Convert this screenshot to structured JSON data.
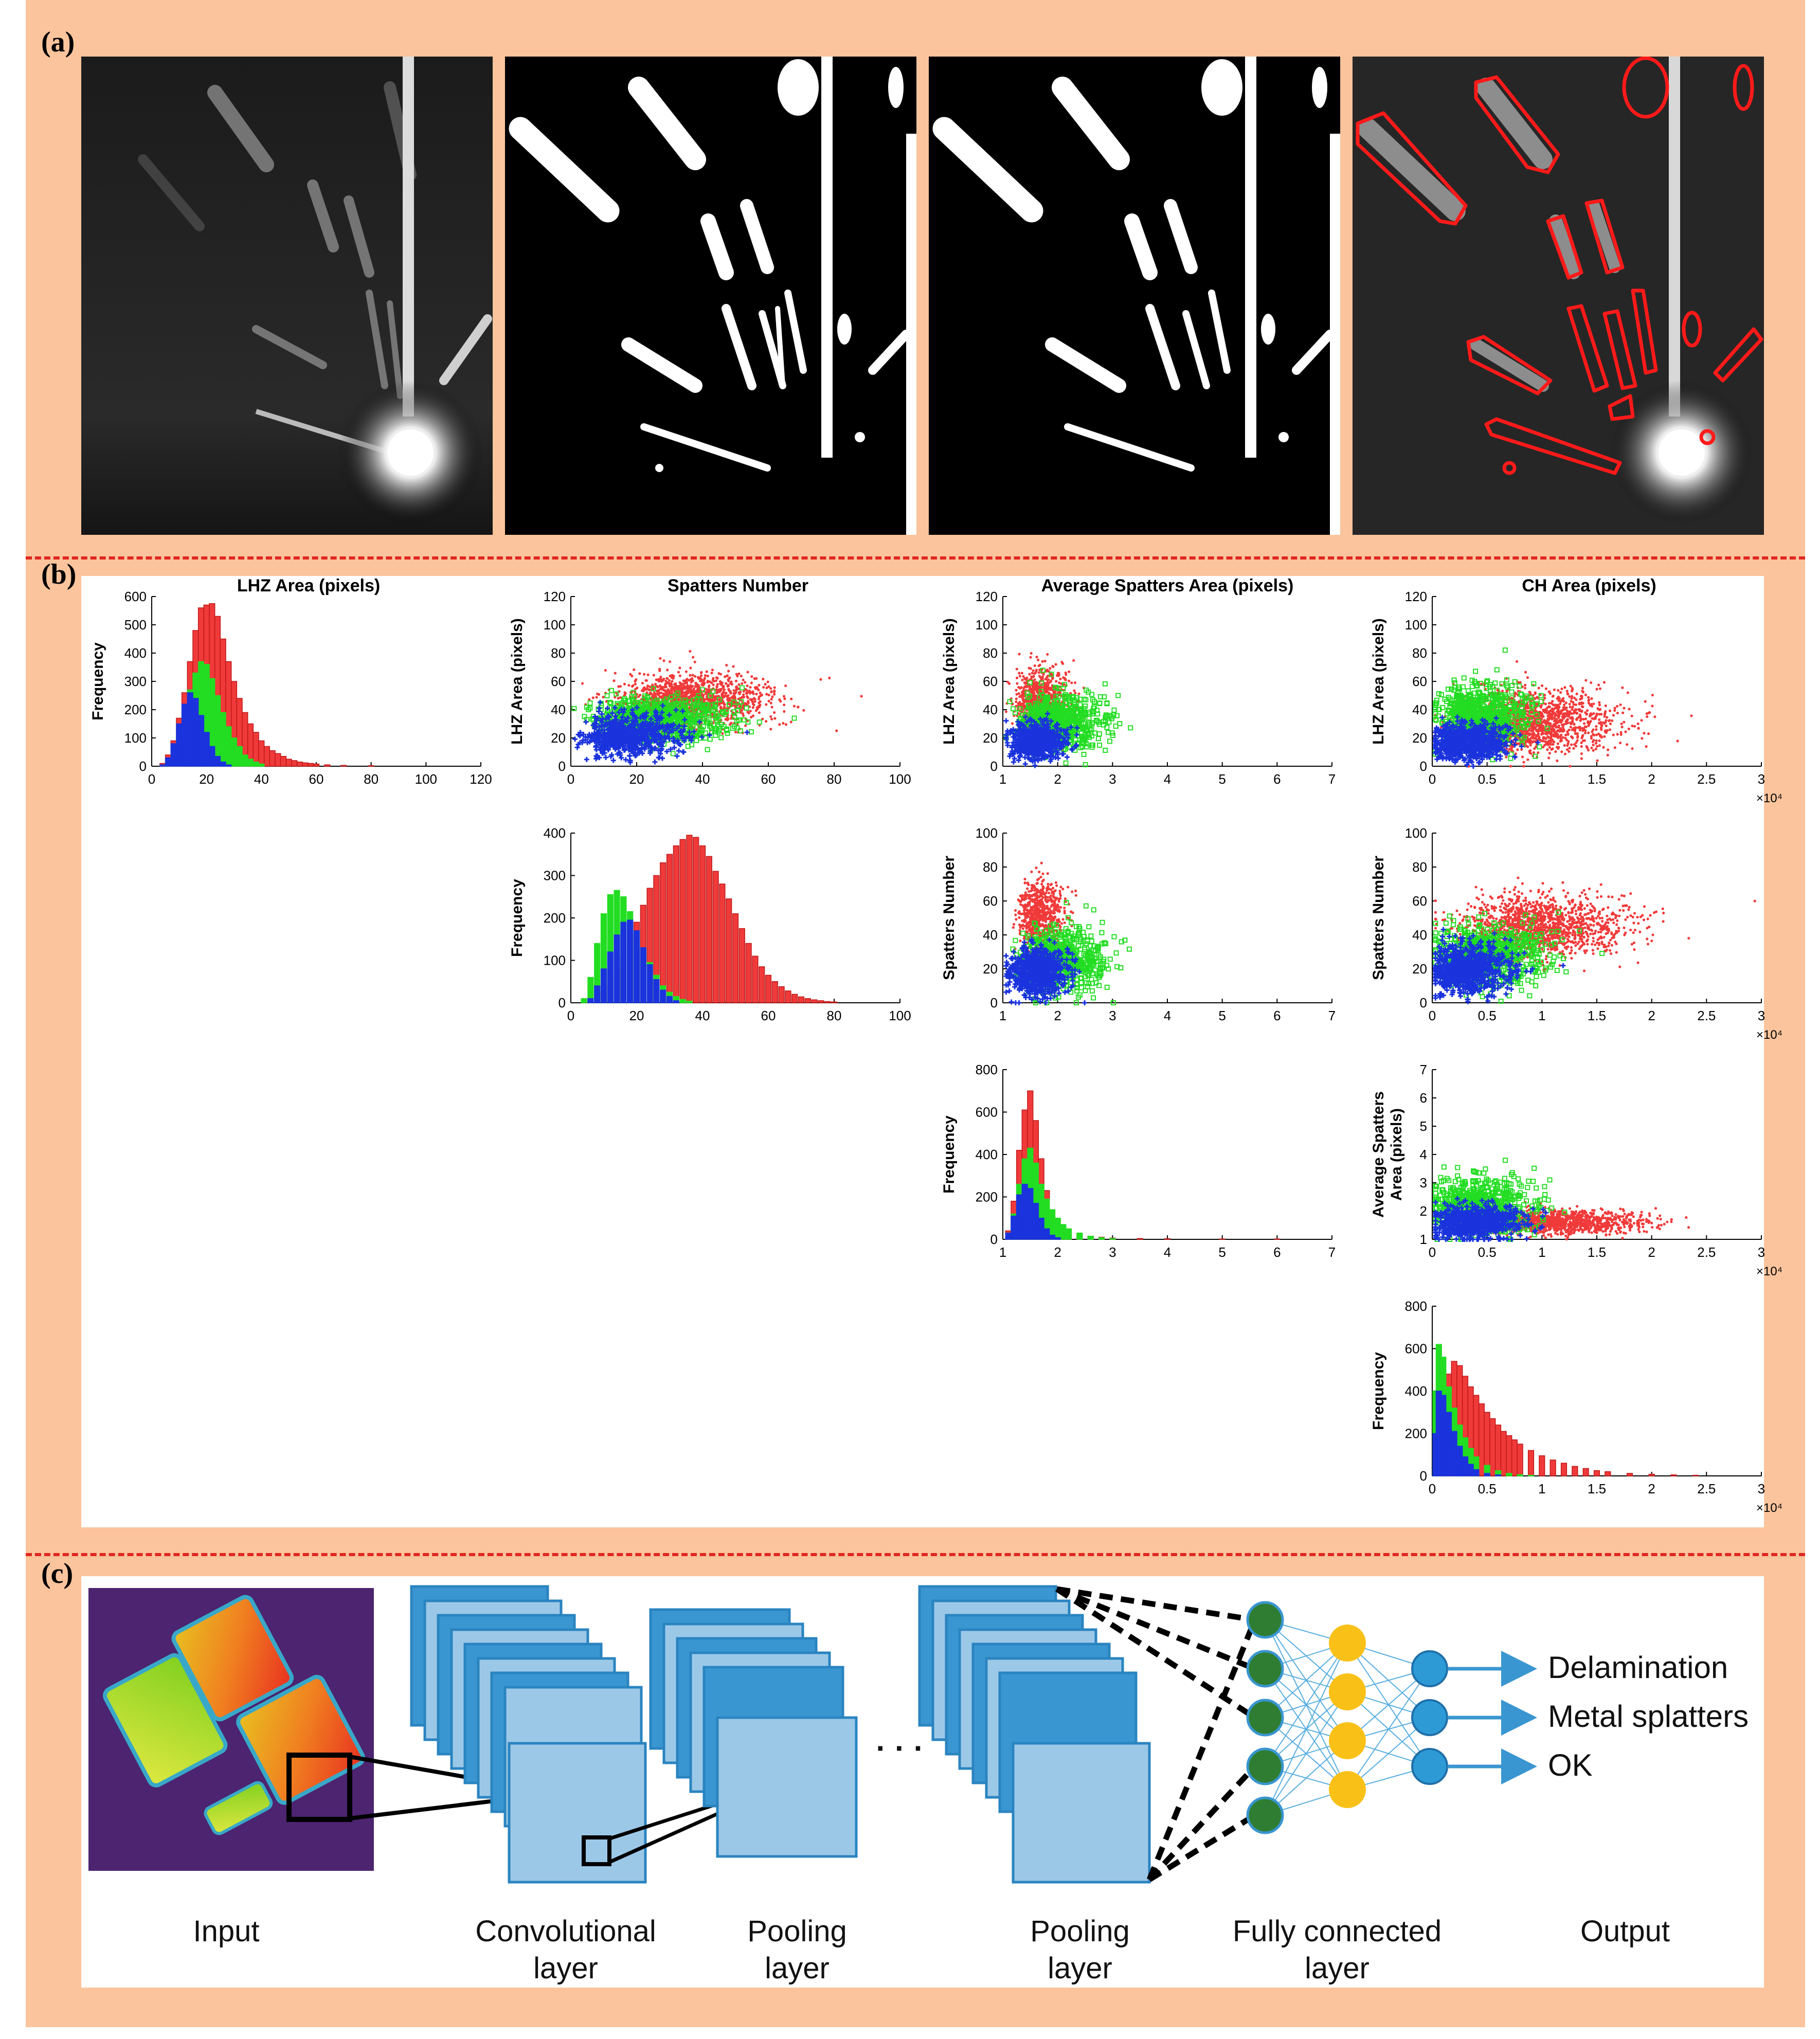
{
  "panels": {
    "a": "(a)",
    "b": "(b)",
    "c": "(c)"
  },
  "colors": {
    "frame": "#fbc49c",
    "divider": "#e0261e",
    "red": "#f03a3a",
    "green": "#22dd22",
    "blue": "#1a33dd",
    "conv": "#9cc8e8",
    "conv_dark": "#3a96d0",
    "node_green": "#2e7d32",
    "node_yellow": "#f9c118",
    "node_blue": "#2d9ad6"
  },
  "panel_a": {
    "images": [
      "raw-grayscale-frame",
      "binary-threshold",
      "binary-filtered",
      "contours-overlay"
    ]
  },
  "panel_b": {
    "column_titles": [
      "LHZ Area (pixels)",
      "Spatters Number",
      "Average Spatters Area (pixels)",
      "CH Area (pixels)"
    ],
    "row_labels": [
      "LHZ Area (pixels)",
      "Spatters Number",
      "Average Spatters Area (pixels)",
      "Frequency"
    ],
    "x10_label": "×10⁴"
  },
  "chart_data": [
    {
      "id": "lhz-hist",
      "type": "bar",
      "title": "LHZ Area (pixels)",
      "ylabel": "Frequency",
      "xlim": [
        0,
        120
      ],
      "ylim": [
        0,
        600
      ],
      "xticks": [
        0,
        20,
        40,
        60,
        80,
        100,
        120
      ],
      "yticks": [
        0,
        100,
        200,
        300,
        400,
        500,
        600
      ],
      "series": [
        {
          "name": "red",
          "color": "#f03a3a",
          "x": [
            4,
            6,
            8,
            10,
            12,
            14,
            16,
            18,
            20,
            22,
            24,
            26,
            28,
            30,
            32,
            34,
            36,
            38,
            40,
            42,
            44,
            46,
            48,
            50,
            52,
            54,
            56,
            58,
            60,
            64,
            70,
            80
          ],
          "values": [
            10,
            40,
            90,
            170,
            260,
            370,
            480,
            560,
            570,
            575,
            530,
            450,
            370,
            300,
            240,
            190,
            150,
            120,
            90,
            70,
            55,
            45,
            35,
            25,
            20,
            15,
            12,
            10,
            8,
            5,
            3,
            2
          ]
        },
        {
          "name": "green",
          "color": "#22dd22",
          "x": [
            4,
            6,
            8,
            10,
            12,
            14,
            16,
            18,
            20,
            22,
            24,
            26,
            28,
            30,
            32,
            34,
            36,
            38,
            40
          ],
          "values": [
            5,
            20,
            60,
            110,
            180,
            270,
            330,
            370,
            360,
            310,
            250,
            190,
            140,
            100,
            70,
            40,
            25,
            15,
            8
          ]
        },
        {
          "name": "blue",
          "color": "#1a33dd",
          "x": [
            4,
            6,
            8,
            10,
            12,
            14,
            16,
            18,
            20,
            22,
            24,
            26,
            28
          ],
          "values": [
            5,
            30,
            80,
            150,
            220,
            260,
            240,
            180,
            120,
            70,
            35,
            15,
            5
          ]
        }
      ]
    },
    {
      "id": "sn-vs-lhz",
      "type": "scatter",
      "ylabel": "LHZ Area (pixels)",
      "xlim": [
        0,
        100
      ],
      "ylim": [
        0,
        120
      ],
      "xticks": [
        0,
        20,
        40,
        60,
        80,
        100
      ],
      "yticks": [
        0,
        20,
        40,
        60,
        80,
        100,
        120
      ]
    },
    {
      "id": "sn-hist",
      "type": "bar",
      "ylabel": "Frequency",
      "xlim": [
        0,
        100
      ],
      "ylim": [
        0,
        400
      ],
      "xticks": [
        0,
        20,
        40,
        60,
        80,
        100
      ],
      "yticks": [
        0,
        100,
        200,
        300,
        400
      ],
      "series": [
        {
          "name": "red",
          "color": "#f03a3a",
          "x": [
            6,
            8,
            10,
            12,
            14,
            16,
            18,
            20,
            22,
            24,
            26,
            28,
            30,
            32,
            34,
            36,
            38,
            40,
            42,
            44,
            46,
            48,
            50,
            52,
            54,
            56,
            58,
            60,
            62,
            64,
            66,
            68,
            70,
            72,
            74,
            76,
            78,
            80
          ],
          "values": [
            10,
            25,
            40,
            60,
            80,
            110,
            150,
            190,
            230,
            270,
            300,
            330,
            350,
            370,
            385,
            395,
            390,
            370,
            345,
            310,
            280,
            245,
            210,
            175,
            140,
            110,
            85,
            65,
            50,
            38,
            28,
            20,
            14,
            10,
            7,
            5,
            3,
            2
          ]
        },
        {
          "name": "green",
          "color": "#22dd22",
          "x": [
            4,
            6,
            8,
            10,
            12,
            14,
            16,
            18,
            20,
            22,
            24,
            26,
            28,
            30,
            32,
            34,
            36
          ],
          "values": [
            10,
            60,
            140,
            210,
            255,
            265,
            250,
            215,
            170,
            130,
            95,
            65,
            40,
            25,
            15,
            8,
            4
          ]
        },
        {
          "name": "blue",
          "color": "#1a33dd",
          "x": [
            6,
            8,
            10,
            12,
            14,
            16,
            18,
            20,
            22,
            24,
            26,
            28,
            30,
            32
          ],
          "values": [
            10,
            40,
            80,
            120,
            160,
            190,
            195,
            170,
            130,
            90,
            55,
            30,
            15,
            5
          ]
        }
      ]
    },
    {
      "id": "avg-vs-lhz",
      "type": "scatter",
      "ylabel": "LHZ Area (pixels)",
      "xlim": [
        1,
        7
      ],
      "ylim": [
        0,
        120
      ],
      "xticks": [
        1,
        2,
        3,
        4,
        5,
        6,
        7
      ],
      "yticks": [
        0,
        20,
        40,
        60,
        80,
        100,
        120
      ]
    },
    {
      "id": "avg-vs-sn",
      "type": "scatter",
      "ylabel": "Spatters Number",
      "xlim": [
        1,
        7
      ],
      "ylim": [
        0,
        100
      ],
      "xticks": [
        1,
        2,
        3,
        4,
        5,
        6,
        7
      ],
      "yticks": [
        0,
        20,
        40,
        60,
        80,
        100
      ]
    },
    {
      "id": "avg-hist",
      "type": "bar",
      "ylabel": "Frequency",
      "xlim": [
        1,
        7
      ],
      "ylim": [
        0,
        800
      ],
      "xticks": [
        1,
        2,
        3,
        4,
        5,
        6,
        7
      ],
      "yticks": [
        0,
        200,
        400,
        600,
        800
      ],
      "series": [
        {
          "name": "red",
          "color": "#f03a3a",
          "x": [
            1.1,
            1.2,
            1.3,
            1.4,
            1.5,
            1.6,
            1.7,
            1.8,
            1.9,
            2.0,
            2.1,
            2.2,
            2.4,
            2.6,
            2.8,
            3.0,
            3.5,
            4.0,
            5.0,
            6.0
          ],
          "values": [
            40,
            180,
            420,
            610,
            700,
            560,
            380,
            230,
            140,
            90,
            60,
            40,
            25,
            15,
            10,
            6,
            4,
            3,
            2,
            2
          ]
        },
        {
          "name": "green",
          "color": "#22dd22",
          "x": [
            1.1,
            1.2,
            1.3,
            1.4,
            1.5,
            1.6,
            1.7,
            1.8,
            1.9,
            2.0,
            2.1,
            2.2,
            2.4,
            2.6,
            2.8,
            3.0
          ],
          "values": [
            30,
            120,
            260,
            380,
            430,
            360,
            260,
            190,
            140,
            100,
            70,
            50,
            30,
            15,
            8,
            4
          ]
        },
        {
          "name": "blue",
          "color": "#1a33dd",
          "x": [
            1.1,
            1.2,
            1.3,
            1.4,
            1.5,
            1.6,
            1.7,
            1.8,
            1.9,
            2.0
          ],
          "values": [
            30,
            110,
            210,
            260,
            240,
            170,
            100,
            50,
            20,
            8
          ]
        }
      ]
    },
    {
      "id": "ch-vs-lhz",
      "type": "scatter",
      "ylabel": "LHZ Area (pixels)",
      "xlim": [
        0,
        3
      ],
      "ylim": [
        0,
        120
      ],
      "xticks": [
        0,
        0.5,
        1,
        1.5,
        2,
        2.5,
        3
      ],
      "yticks": [
        0,
        20,
        40,
        60,
        80,
        100,
        120
      ]
    },
    {
      "id": "ch-vs-sn",
      "type": "scatter",
      "ylabel": "Spatters Number",
      "xlim": [
        0,
        3
      ],
      "ylim": [
        0,
        100
      ],
      "xticks": [
        0,
        0.5,
        1,
        1.5,
        2,
        2.5,
        3
      ],
      "yticks": [
        0,
        20,
        40,
        60,
        80,
        100
      ]
    },
    {
      "id": "ch-vs-avg",
      "type": "scatter",
      "ylabel": "Average Spatters Area (pixels)",
      "xlim": [
        0,
        3
      ],
      "ylim": [
        1,
        7
      ],
      "xticks": [
        0,
        0.5,
        1,
        1.5,
        2,
        2.5,
        3
      ],
      "yticks": [
        1,
        2,
        3,
        4,
        5,
        6,
        7
      ]
    },
    {
      "id": "ch-hist",
      "type": "bar",
      "ylabel": "Frequency",
      "xlim": [
        0,
        3
      ],
      "ylim": [
        0,
        800
      ],
      "xticks": [
        0,
        0.5,
        1,
        1.5,
        2,
        2.5,
        3
      ],
      "yticks": [
        0,
        200,
        400,
        600,
        800
      ],
      "series": [
        {
          "name": "red",
          "color": "#f03a3a",
          "x": [
            0.05,
            0.1,
            0.15,
            0.2,
            0.25,
            0.3,
            0.35,
            0.4,
            0.45,
            0.5,
            0.55,
            0.6,
            0.65,
            0.7,
            0.75,
            0.8,
            0.9,
            1.0,
            1.1,
            1.2,
            1.3,
            1.4,
            1.5,
            1.6,
            1.8,
            2.0,
            2.2,
            2.4
          ],
          "values": [
            150,
            380,
            480,
            540,
            520,
            470,
            420,
            380,
            340,
            300,
            270,
            240,
            210,
            190,
            170,
            150,
            120,
            95,
            75,
            60,
            45,
            35,
            25,
            20,
            12,
            8,
            5,
            3
          ]
        },
        {
          "name": "green",
          "color": "#22dd22",
          "x": [
            0.03,
            0.06,
            0.1,
            0.15,
            0.2,
            0.25,
            0.3,
            0.35,
            0.4,
            0.5,
            0.6,
            0.7,
            0.8,
            0.9
          ],
          "values": [
            400,
            620,
            560,
            420,
            320,
            240,
            180,
            130,
            90,
            50,
            25,
            12,
            6,
            3
          ]
        },
        {
          "name": "blue",
          "color": "#1a33dd",
          "x": [
            0.03,
            0.06,
            0.1,
            0.15,
            0.2,
            0.25,
            0.3,
            0.35,
            0.4,
            0.5,
            0.6
          ],
          "values": [
            200,
            400,
            380,
            300,
            210,
            140,
            90,
            55,
            30,
            12,
            5
          ]
        }
      ]
    }
  ],
  "panel_c": {
    "labels": {
      "input": "Input",
      "conv": "Convolutional\nlayer",
      "pool1": "Pooling\nlayer",
      "pool2": "Pooling\nlayer",
      "fc": "Fully connected\nlayer",
      "output": "Output"
    },
    "ellipsis": "· · ·",
    "outputs": [
      "Delamination",
      "Metal splatters",
      "OK"
    ]
  }
}
